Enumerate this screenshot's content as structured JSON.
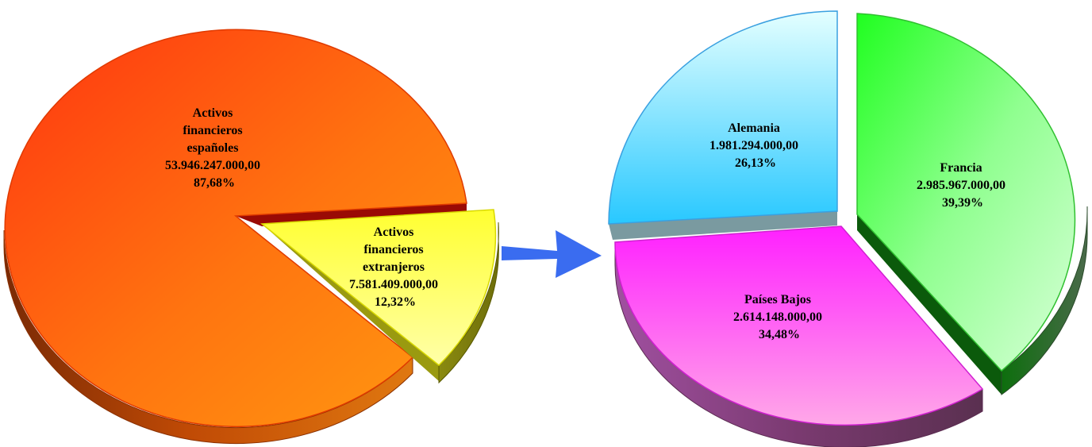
{
  "chart_data": [
    {
      "type": "pie",
      "title": "",
      "slices": [
        {
          "name": "Activos financieros españoles",
          "label_lines": [
            "Activos",
            "financieros",
            "españoles"
          ],
          "value": 53946247000.0,
          "value_label": "53.946.247.000,00",
          "percent_label": "87,68%",
          "color": "#ff7a10",
          "exploded": false
        },
        {
          "name": "Activos financieros extranjeros",
          "label_lines": [
            "Activos",
            "financieros",
            "extranjeros"
          ],
          "value": 7581409000.0,
          "value_label": "7.581.409.000,00",
          "percent_label": "12,32%",
          "color": "#ffff70",
          "exploded": true
        }
      ]
    },
    {
      "type": "pie",
      "title": "",
      "slices": [
        {
          "name": "Francia",
          "label_lines": [
            "Francia"
          ],
          "value": 2985967000.0,
          "value_label": "2.985.967.000,00",
          "percent_label": "39,39%",
          "color": "#70ff60",
          "exploded": true
        },
        {
          "name": "Países Bajos",
          "label_lines": [
            "Países Bajos"
          ],
          "value": 2614148000.0,
          "value_label": "2.614.148.000,00",
          "percent_label": "34,48%",
          "color": "#ff40ff",
          "exploded": false
        },
        {
          "name": "Alemania",
          "label_lines": [
            "Alemania"
          ],
          "value": 1981294000.0,
          "value_label": "1.981.294.000,00",
          "percent_label": "26,13%",
          "color": "#60d8ff",
          "exploded": false
        }
      ]
    }
  ],
  "connector": {
    "icon": "arrow-right-icon",
    "color": "#3a6cf0"
  }
}
